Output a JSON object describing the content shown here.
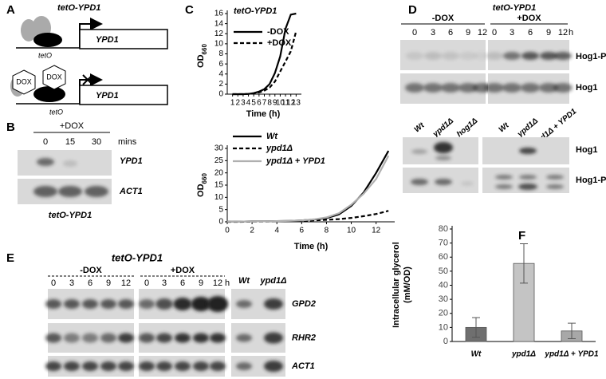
{
  "panels": {
    "A": {
      "label": "A",
      "title": "tetO-YPD1",
      "gene_top": "YPD1",
      "promoter_top": "tetO",
      "dox_left": "DOX",
      "dox_right": "DOX",
      "gene_bottom": "YPD1",
      "promoter_bottom": "tetO"
    },
    "B": {
      "label": "B",
      "treatment": "+DOX",
      "lanes": [
        "0",
        "15",
        "30"
      ],
      "unit": "mins",
      "rows": [
        "YPD1",
        "ACT1"
      ],
      "caption": "tetO-YPD1"
    },
    "C": {
      "label": "C"
    },
    "D": {
      "label": "D",
      "title": "tetO-YPD1",
      "groups": [
        "-DOX",
        "+DOX"
      ],
      "lanes": [
        "0",
        "3",
        "6",
        "9",
        "12",
        "0",
        "3",
        "6",
        "9",
        "12"
      ],
      "unit": "h",
      "rows": [
        "Hog1-P",
        "Hog1"
      ],
      "strains": [
        "Wt",
        "ypd1Δ",
        "hog1Δ",
        "Wt",
        "ypd1Δ",
        "ypd1Δ + YPD1"
      ],
      "rows_lower": [
        "Hog1",
        "Hog1-P"
      ]
    },
    "E": {
      "label": "E",
      "title": "tetO-YPD1",
      "groups": [
        "-DOX",
        "+DOX"
      ],
      "lanes": [
        "0",
        "3",
        "6",
        "9",
        "12",
        "0",
        "3",
        "6",
        "9",
        "12"
      ],
      "unit": "h",
      "strains": [
        "Wt",
        "ypd1Δ"
      ],
      "rows": [
        "GPD2",
        "RHR2",
        "ACT1"
      ]
    },
    "F": {
      "label": "F"
    }
  },
  "chart_data": [
    {
      "type": "line",
      "title": "tetO-YPD1",
      "ylabel": "OD",
      "ylabel_sub": "660",
      "xlabel": "Time (h)",
      "x": [
        1,
        2,
        3,
        4,
        5,
        6,
        7,
        8,
        9,
        10,
        11,
        12,
        13
      ],
      "series": [
        {
          "name": "-DOX",
          "color": "#000000",
          "line_style": "solid",
          "values": [
            0,
            0,
            0,
            0.05,
            0.2,
            0.5,
            1.0,
            2.0,
            4.2,
            7.5,
            13,
            15.8,
            16
          ]
        },
        {
          "name": "+DOX",
          "color": "#000000",
          "line_style": "dashed",
          "values": [
            0,
            0,
            0,
            0.05,
            0.15,
            0.35,
            0.7,
            1.3,
            2.5,
            4.5,
            6.5,
            8.5,
            12.5
          ]
        }
      ],
      "xlim": [
        0,
        14
      ],
      "ylim": [
        0,
        16
      ],
      "xticks": [
        1,
        2,
        3,
        4,
        5,
        6,
        7,
        8,
        9,
        10,
        11,
        12,
        13
      ],
      "yticks": [
        0,
        2,
        4,
        6,
        8,
        10,
        12,
        14,
        16
      ]
    },
    {
      "type": "line",
      "ylabel": "OD",
      "ylabel_sub": "660",
      "xlabel": "Time (h)",
      "x": [
        0,
        1,
        2,
        3,
        4,
        5,
        6,
        7,
        8,
        9,
        10,
        11,
        12,
        13
      ],
      "series": [
        {
          "name": "Wt",
          "color": "#000000",
          "line_style": "solid",
          "values": [
            0.1,
            0.1,
            0.2,
            0.2,
            0.3,
            0.4,
            0.6,
            0.9,
            1.5,
            3,
            6.5,
            12,
            20,
            29
          ]
        },
        {
          "name": "ypd1Δ",
          "color": "#000000",
          "line_style": "dashed",
          "values": [
            0,
            0,
            0.1,
            0.1,
            0.2,
            0.3,
            0.4,
            0.6,
            0.8,
            1.1,
            1.6,
            2.3,
            3.2,
            4.5
          ]
        },
        {
          "name": "ypd1Δ + YPD1",
          "color": "#b0b0b0",
          "line_style": "solid",
          "values": [
            0.1,
            0.1,
            0.2,
            0.2,
            0.3,
            0.4,
            0.6,
            1.0,
            1.8,
            3.5,
            7,
            11.5,
            17.5,
            27
          ]
        }
      ],
      "xlim": [
        0,
        13.5
      ],
      "ylim": [
        0,
        30
      ],
      "xticks": [
        0,
        2,
        4,
        6,
        8,
        10,
        12
      ],
      "yticks": [
        0,
        5,
        10,
        15,
        20,
        25,
        30
      ]
    },
    {
      "type": "bar",
      "ylabel": "Intracellular glycerol",
      "ylabel_unit": "(mM/OD)",
      "categories": [
        "Wt",
        "ypd1Δ",
        "ypd1Δ + YPD1"
      ],
      "values": [
        10,
        55.5,
        7.5
      ],
      "errors": [
        7,
        14,
        5.5
      ],
      "colors": [
        "#6f6f6f",
        "#c4c4c4",
        "#a8a8a8"
      ],
      "ylim": [
        0,
        80
      ],
      "yticks": [
        0,
        10,
        20,
        30,
        40,
        50,
        60,
        70,
        80
      ]
    }
  ]
}
